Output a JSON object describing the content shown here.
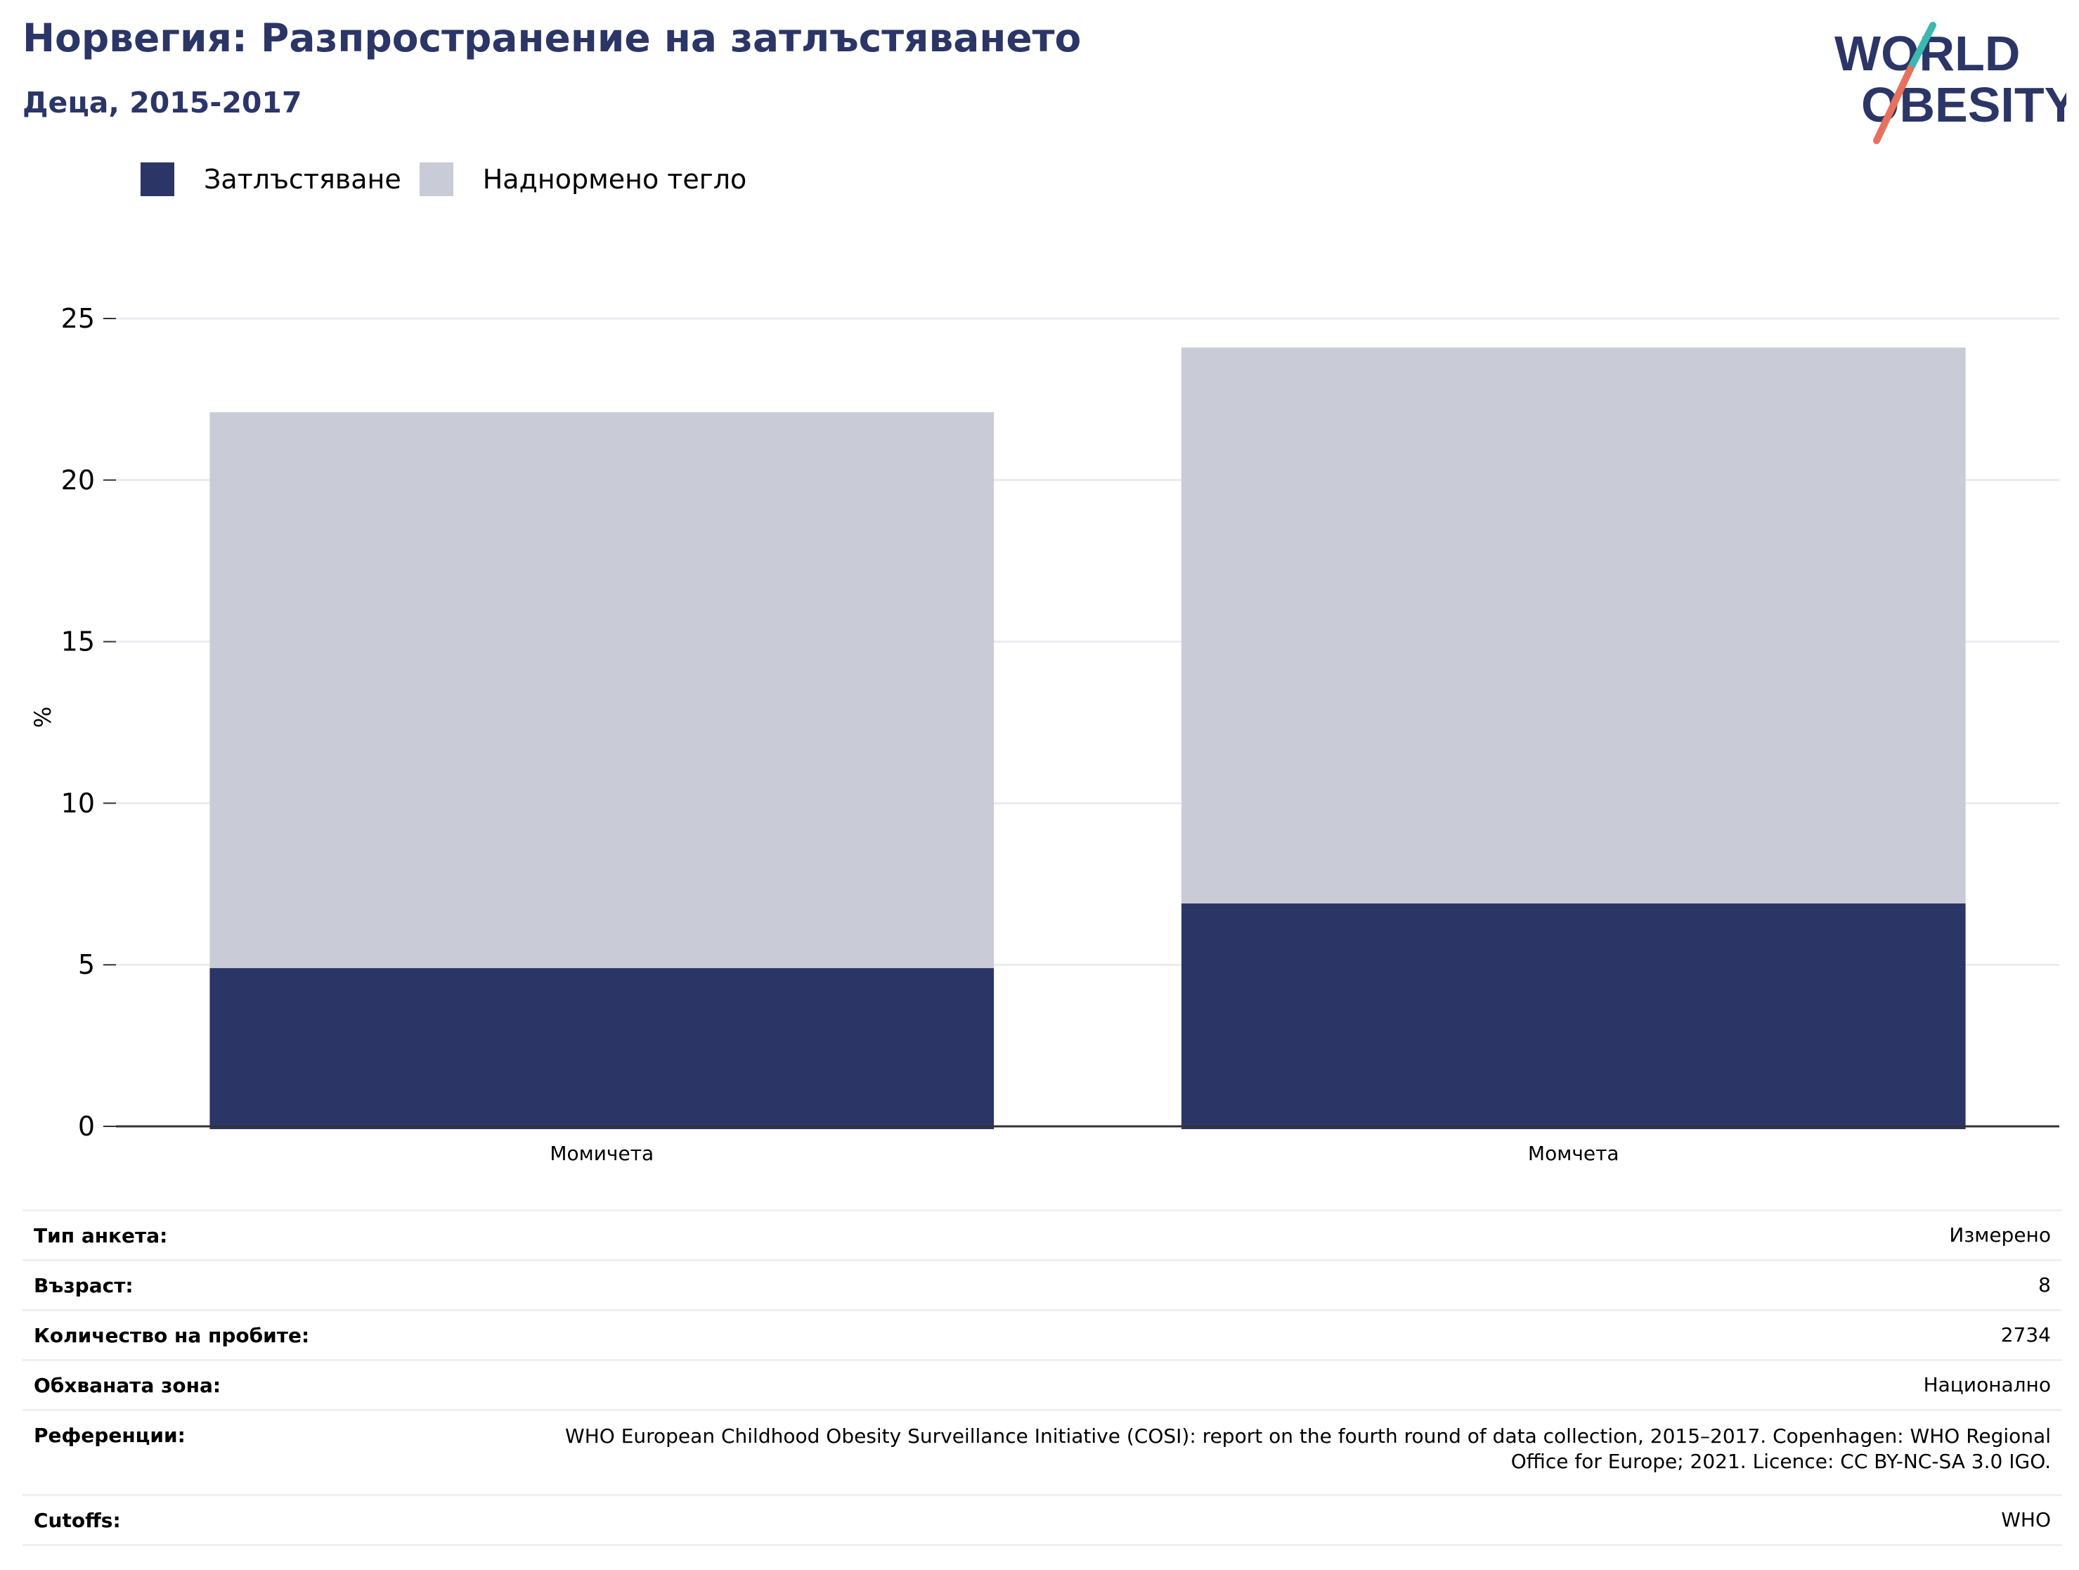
{
  "header": {
    "title": "Норвегия: Разпространение на затлъстяването",
    "subtitle": "Деца, 2015-2017"
  },
  "logo": {
    "line1": "WORLD",
    "line2": "OBESITY"
  },
  "colors": {
    "obesity": "#2b3667",
    "overweight": "#c9cbd7",
    "text_dark": "#2b3667"
  },
  "chart_data": {
    "type": "bar",
    "stacked": true,
    "categories": [
      "Момичета",
      "Момчета"
    ],
    "series": [
      {
        "name": "Затлъстяване",
        "color": "#2b3667",
        "values": [
          4.9,
          6.9
        ]
      },
      {
        "name": "Наднормено тегло",
        "color": "#c9cbd7",
        "values": [
          17.2,
          17.2
        ]
      }
    ],
    "ylabel": "%",
    "ylim": [
      0,
      25
    ],
    "yticks": [
      0,
      5,
      10,
      15,
      20,
      25
    ],
    "grid": true,
    "legend_position": "top-left"
  },
  "meta": [
    {
      "key": "Тип анкета:",
      "value": "Измерено"
    },
    {
      "key": "Възраст:",
      "value": "8"
    },
    {
      "key": "Количество на пробите:",
      "value": "2734"
    },
    {
      "key": "Обхваната зона:",
      "value": "Национално"
    },
    {
      "key": "Референции:",
      "value": "WHO European Childhood Obesity Surveillance Initiative (COSI): report on the fourth round of data collection, 2015–2017. Copenhagen: WHO Regional Office for Europe; 2021. Licence: CC BY-NC-SA 3.0 IGO."
    },
    {
      "key": "Cutoffs:",
      "value": "WHO"
    }
  ]
}
